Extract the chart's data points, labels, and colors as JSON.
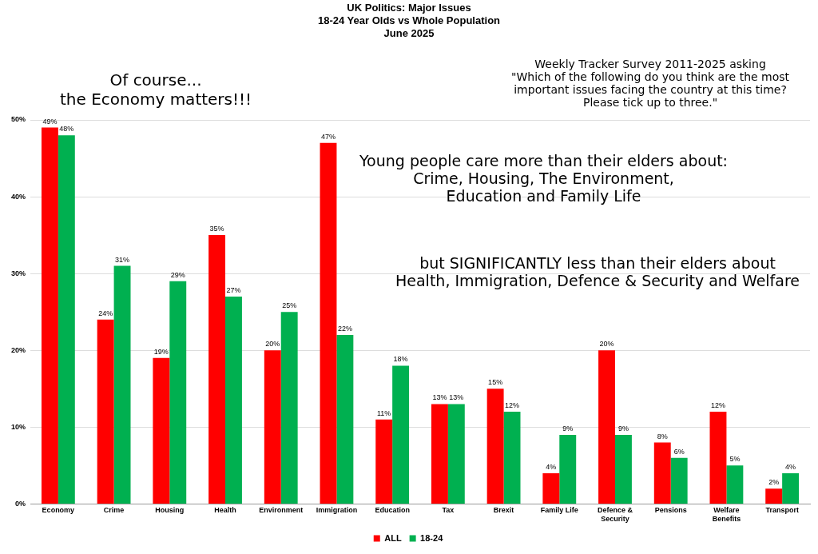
{
  "chart_data": {
    "type": "bar",
    "title": "UK Politics: Major Issues",
    "subtitle": "18-24 Year Olds vs Whole Population\nJune 2025",
    "categories": [
      "Economy",
      "Crime",
      "Housing",
      "Health",
      "Environment",
      "Immigration",
      "Education",
      "Tax",
      "Brexit",
      "Family Life",
      "Defence & Security",
      "Pensions",
      "Welfare Benefits",
      "Transport"
    ],
    "series": [
      {
        "name": "ALL",
        "color": "#ff0000",
        "values": [
          49,
          24,
          19,
          35,
          20,
          47,
          11,
          13,
          15,
          4,
          20,
          8,
          12,
          2
        ],
        "value_labels": [
          "49%",
          "24%",
          "19%",
          "35%",
          "20%",
          "47%",
          "11%",
          "13%",
          "15%",
          "4%",
          "20%",
          "8%",
          "12%",
          "2%"
        ]
      },
      {
        "name": "18-24",
        "color": "#00b050",
        "values": [
          48,
          31,
          29,
          27,
          25,
          22,
          18,
          13,
          12,
          9,
          9,
          6,
          5,
          4
        ],
        "value_labels": [
          "48%",
          "31%",
          "29%",
          "27%",
          "25%",
          "22%",
          "18%",
          "13%",
          "12%",
          "9%",
          "9%",
          "6%",
          "5%",
          "4%"
        ]
      }
    ],
    "ylim": [
      0,
      50
    ],
    "yticks": [
      {
        "value": 0,
        "label": "0%"
      },
      {
        "value": 10,
        "label": "10%"
      },
      {
        "value": 20,
        "label": "20%"
      },
      {
        "value": 30,
        "label": "30%"
      },
      {
        "value": 40,
        "label": "40%"
      },
      {
        "value": 50,
        "label": "50%"
      }
    ],
    "grid": "y",
    "legend": "bottom",
    "annotations": [
      "Of course...\nthe Economy matters!!!",
      "Weekly Tracker Survey 2011-2025 asking\n\"Which of the following do you think are the most\nimportant issues facing the country at this time?\nPlease tick up to three.\"",
      "Young people care more than their elders about:\nCrime, Housing, The Environment,\nEducation and Family Life",
      "but SIGNIFICANTLY less than their elders about\nHealth, Immigration, Defence & Security and Welfare"
    ]
  }
}
